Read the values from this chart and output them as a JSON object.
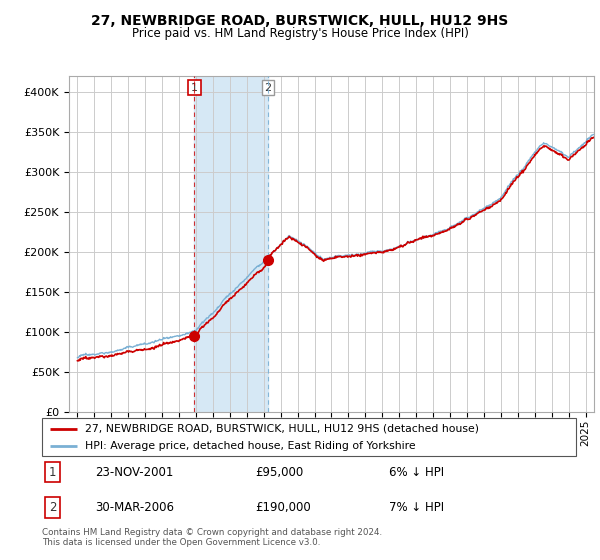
{
  "title": "27, NEWBRIDGE ROAD, BURSTWICK, HULL, HU12 9HS",
  "subtitle": "Price paid vs. HM Land Registry's House Price Index (HPI)",
  "footer": "Contains HM Land Registry data © Crown copyright and database right 2024.\nThis data is licensed under the Open Government Licence v3.0.",
  "legend_line1": "27, NEWBRIDGE ROAD, BURSTWICK, HULL, HU12 9HS (detached house)",
  "legend_line2": "HPI: Average price, detached house, East Riding of Yorkshire",
  "sale1_date": "23-NOV-2001",
  "sale1_price": "£95,000",
  "sale1_hpi": "6% ↓ HPI",
  "sale2_date": "30-MAR-2006",
  "sale2_price": "£190,000",
  "sale2_hpi": "7% ↓ HPI",
  "sale1_year": 2001.9,
  "sale2_year": 2006.25,
  "sale1_price_val": 95000,
  "sale2_price_val": 190000,
  "ylim": [
    0,
    420000
  ],
  "yticks": [
    0,
    50000,
    100000,
    150000,
    200000,
    250000,
    300000,
    350000,
    400000
  ],
  "xmin": 1994.5,
  "xmax": 2025.5,
  "background_color": "#ffffff",
  "plot_bg_color": "#ffffff",
  "grid_color": "#cccccc",
  "red_color": "#cc0000",
  "blue_color": "#7ab0d4",
  "shade_color": "#d6e8f5"
}
